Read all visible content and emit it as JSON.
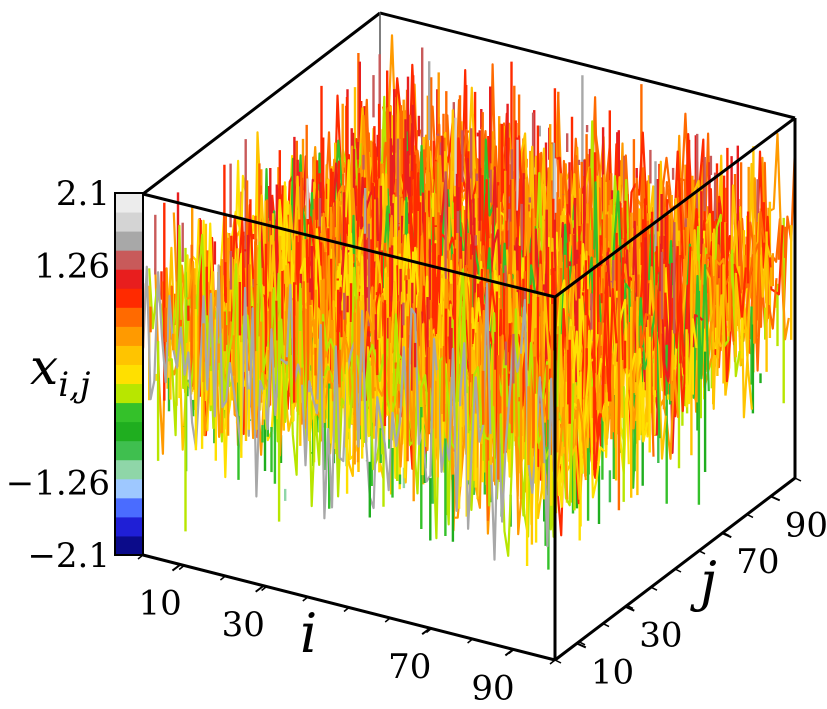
{
  "chart_data": {
    "type": "surface3d",
    "title": "",
    "x_axis": {
      "label": "i",
      "ticks": [
        "10",
        "30",
        "70",
        "90"
      ],
      "tick_values": [
        10,
        30,
        70,
        90
      ],
      "range": [
        1,
        100
      ]
    },
    "y_axis": {
      "label": "j",
      "ticks": [
        "10",
        "30",
        "70",
        "90"
      ],
      "tick_values": [
        10,
        30,
        70,
        90
      ],
      "range": [
        1,
        100
      ]
    },
    "z_axis": {
      "label": "x_{i,j}",
      "range": [
        -2.1,
        2.1
      ]
    },
    "colorbar": {
      "label_main": "x",
      "label_sub": "i,j",
      "ticks": [
        "2.1",
        "1.26",
        "−1.26",
        "−2.1"
      ],
      "tick_values": [
        2.1,
        1.26,
        -1.26,
        -2.1
      ],
      "colors": [
        "#0b0b8a",
        "#1f1fd6",
        "#4a6cff",
        "#9ec8ff",
        "#8fd6a8",
        "#3fbf4f",
        "#1fae1f",
        "#34c12a",
        "#b8e600",
        "#ffe000",
        "#ffc400",
        "#ff9a00",
        "#ff6a00",
        "#ff2a00",
        "#e81e1e",
        "#c85a5a",
        "#a8a8a8",
        "#d4d4d4",
        "#ececec"
      ]
    },
    "grid_size": [
      100,
      100
    ],
    "color_mapping": "z value mapped through colorbar colors"
  }
}
